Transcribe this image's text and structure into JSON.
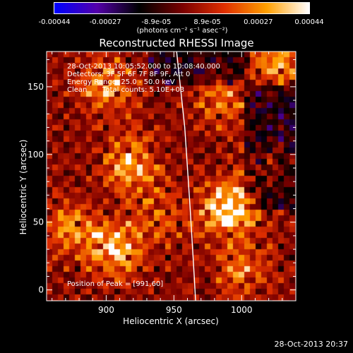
{
  "chart_data": {
    "type": "heatmap",
    "title": "Reconstructed RHESSI Image",
    "xlabel": "Heliocentric X (arcsec)",
    "ylabel": "Heliocentric Y (arcsec)",
    "xlim": [
      856,
      1040
    ],
    "ylim": [
      -8,
      176
    ],
    "xticks": [
      900,
      950,
      1000
    ],
    "yticks": [
      0,
      50,
      100,
      150
    ],
    "colorbar": {
      "ticks": [
        "-0.00044",
        "-0.00027",
        "-8.9e-05",
        "8.9e-05",
        "0.00027",
        "0.00044"
      ],
      "range": [
        -0.00044,
        0.00044
      ],
      "unit_label": "(photons cm⁻² s⁻¹ asec⁻²)",
      "colors": [
        "#0000ff",
        "#5500aa",
        "#000000",
        "#7a0000",
        "#e03000",
        "#ffa000",
        "#ffffff"
      ]
    },
    "annotations": {
      "time_range": "28-Oct-2013 10:05:52.000 to 10:08:40.000",
      "detectors": "Detectors: 3F 5F 6F 7F 8F 9F, Att 0",
      "energy": "Energy Range: 25.0 - 50.0 keV",
      "clean": "Clean",
      "total_counts": "Total counts: 5.10E+03",
      "peak": "Position of Peak = [991,60]"
    },
    "peak": [
      991,
      60
    ],
    "limb": [
      [
        952,
        176
      ],
      [
        958,
        120
      ],
      [
        962,
        60
      ],
      [
        965,
        10
      ],
      [
        966,
        -8
      ]
    ],
    "sources": [
      {
        "x": 991,
        "y": 60,
        "intensity": 1.0
      },
      {
        "x": 906,
        "y": 30,
        "intensity": 0.75
      },
      {
        "x": 918,
        "y": 92,
        "intensity": 0.65
      },
      {
        "x": 900,
        "y": 150,
        "intensity": 0.55
      },
      {
        "x": 1027,
        "y": 168,
        "intensity": 0.55
      },
      {
        "x": 1000,
        "y": 15,
        "intensity": 0.45
      },
      {
        "x": 872,
        "y": 45,
        "intensity": 0.45
      },
      {
        "x": 985,
        "y": 140,
        "intensity": 0.4
      },
      {
        "x": 940,
        "y": 55,
        "intensity": 0.35
      },
      {
        "x": 1020,
        "y": 95,
        "intensity": 0.3
      }
    ]
  },
  "timestamp": "28-Oct-2013 20:37"
}
